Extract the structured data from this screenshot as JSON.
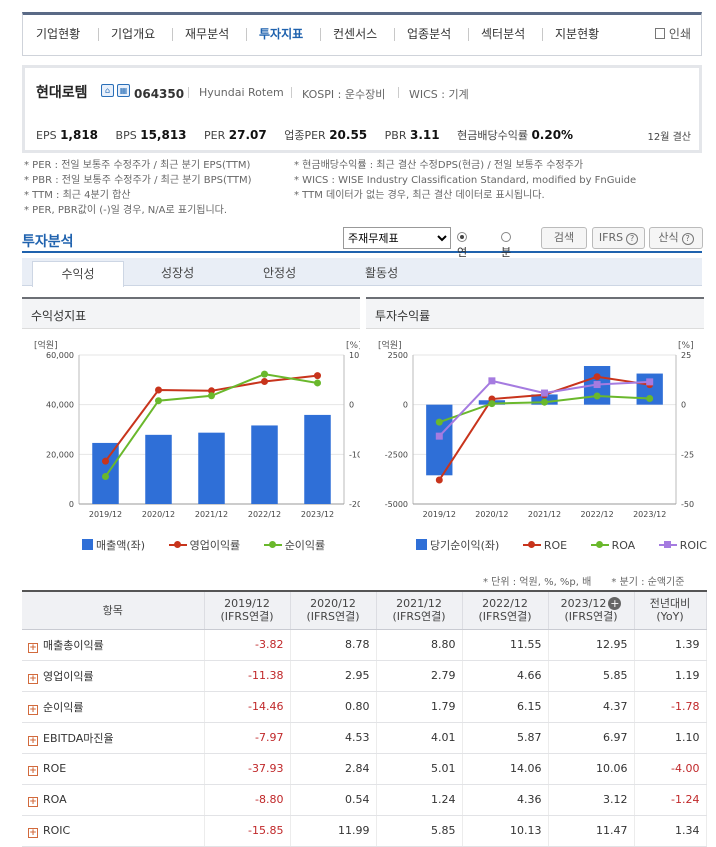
{
  "nav": {
    "tabs": [
      "기업현황",
      "기업개요",
      "재무분석",
      "투자지표",
      "컨센서스",
      "업종분석",
      "섹터분석",
      "지분현황"
    ],
    "active_index": 3,
    "print_label": "인쇄"
  },
  "company": {
    "name": "현대로템",
    "code": "064350",
    "en_name": "Hyundai Rotem",
    "market": "KOSPI : 운수장비",
    "wics": "WICS : 기계",
    "indicators": [
      {
        "label": "EPS",
        "value": "1,818"
      },
      {
        "label": "BPS",
        "value": "15,813"
      },
      {
        "label": "PER",
        "value": "27.07"
      },
      {
        "label": "업종PER",
        "value": "20.55"
      },
      {
        "label": "PBR",
        "value": "3.11"
      },
      {
        "label": "현금배당수익률",
        "value": "0.20%"
      }
    ],
    "settlement": "12월 결산"
  },
  "notes_left": [
    "* PER : 전일 보통주 수정주가 / 최근 분기 EPS(TTM)",
    "* PBR : 전일 보통주 수정주가 / 최근 분기 BPS(TTM)",
    "* TTM : 최근 4분기 합산",
    "* PER, PBR값이 (-)일 경우, N/A로 표기됩니다."
  ],
  "notes_right": [
    "* 현금배당수익률 : 최근 결산 수정DPS(현금) / 전일 보통주 수정주가",
    "* WICS : WISE Industry Classification Standard, modified by FnGuide",
    "* TTM 데이터가 없는 경우, 최근 결산 데이터로 표시됩니다."
  ],
  "section": {
    "title": "투자분석",
    "select_value": "주재무제표",
    "radio_annual": "연간",
    "radio_quarter": "분기",
    "search_button": "검색",
    "ifrs_button": "IFRS",
    "formula_button": "산식"
  },
  "subtabs": [
    "수익성",
    "성장성",
    "안정성",
    "활동성"
  ],
  "left_chart": {
    "title": "수익성지표",
    "unit_left": "[억원]",
    "unit_right": "[%]"
  },
  "right_chart": {
    "title": "투자수익률",
    "unit_left": "[억원]",
    "unit_right": "[%]"
  },
  "unit_notes": [
    "* 단위 : 억원, %, %p, 배",
    "* 분기 : 순액기준"
  ],
  "colors": {
    "bar": "#2f6fd7",
    "line_red": "#c8341c",
    "line_green": "#6ab82c",
    "line_purple": "#a57be0",
    "accent": "#1f62ae"
  },
  "chart_data": [
    {
      "type": "bar",
      "title": "수익성지표",
      "categories": [
        "2019/12",
        "2020/12",
        "2021/12",
        "2022/12",
        "2023/12"
      ],
      "ylabel": "[억원]",
      "y2label": "[%]",
      "ylim": [
        0,
        60000
      ],
      "y2lim": [
        -20,
        10
      ],
      "yticks": [
        "0",
        "20,000",
        "40,000",
        "60,000"
      ],
      "y2ticks": [
        "-20",
        "-10",
        "0",
        "10"
      ],
      "series": [
        {
          "name": "매출액(좌)",
          "kind": "bar",
          "axis": "left",
          "values": [
            24593,
            27853,
            28725,
            31633,
            35874
          ]
        },
        {
          "name": "영업이익률",
          "kind": "line",
          "axis": "right",
          "values": [
            -11.38,
            2.95,
            2.79,
            4.66,
            5.85
          ]
        },
        {
          "name": "순이익률",
          "kind": "line",
          "axis": "right",
          "values": [
            -14.46,
            0.8,
            1.79,
            6.15,
            4.37
          ]
        }
      ]
    },
    {
      "type": "bar",
      "title": "투자수익률",
      "categories": [
        "2019/12",
        "2020/12",
        "2021/12",
        "2022/12",
        "2023/12"
      ],
      "ylabel": "[억원]",
      "y2label": "[%]",
      "ylim": [
        -5000,
        2500
      ],
      "y2lim": [
        -50,
        25
      ],
      "yticks": [
        "-5000",
        "-2500",
        "0",
        "2500"
      ],
      "y2ticks": [
        "-50",
        "-25",
        "0",
        "25"
      ],
      "series": [
        {
          "name": "당기순이익(좌)",
          "kind": "bar",
          "axis": "left",
          "values": [
            -3556,
            223,
            515,
            1946,
            1566
          ]
        },
        {
          "name": "ROE",
          "kind": "line",
          "axis": "right",
          "values": [
            -37.93,
            2.84,
            5.01,
            14.06,
            10.06
          ]
        },
        {
          "name": "ROA",
          "kind": "line",
          "axis": "right",
          "values": [
            -8.8,
            0.54,
            1.24,
            4.36,
            3.12
          ]
        },
        {
          "name": "ROIC",
          "kind": "line",
          "axis": "right",
          "values": [
            -15.85,
            11.99,
            5.85,
            10.13,
            11.47
          ]
        }
      ]
    }
  ],
  "table": {
    "header_item": "항목",
    "columns": [
      {
        "year": "2019/12",
        "basis": "(IFRS연결)"
      },
      {
        "year": "2020/12",
        "basis": "(IFRS연결)"
      },
      {
        "year": "2021/12",
        "basis": "(IFRS연결)"
      },
      {
        "year": "2022/12",
        "basis": "(IFRS연결)"
      },
      {
        "year": "2023/12",
        "basis": "(IFRS연결)"
      }
    ],
    "yoy_label": "전년대비",
    "yoy_sub": "(YoY)",
    "rows": [
      {
        "label": "매출총이익률",
        "values": [
          "-3.82",
          "8.78",
          "8.80",
          "11.55",
          "12.95",
          "1.39"
        ]
      },
      {
        "label": "영업이익률",
        "values": [
          "-11.38",
          "2.95",
          "2.79",
          "4.66",
          "5.85",
          "1.19"
        ]
      },
      {
        "label": "순이익률",
        "values": [
          "-14.46",
          "0.80",
          "1.79",
          "6.15",
          "4.37",
          "-1.78"
        ]
      },
      {
        "label": "EBITDA마진율",
        "values": [
          "-7.97",
          "4.53",
          "4.01",
          "5.87",
          "6.97",
          "1.10"
        ]
      },
      {
        "label": "ROE",
        "values": [
          "-37.93",
          "2.84",
          "5.01",
          "14.06",
          "10.06",
          "-4.00"
        ]
      },
      {
        "label": "ROA",
        "values": [
          "-8.80",
          "0.54",
          "1.24",
          "4.36",
          "3.12",
          "-1.24"
        ]
      },
      {
        "label": "ROIC",
        "values": [
          "-15.85",
          "11.99",
          "5.85",
          "10.13",
          "11.47",
          "1.34"
        ]
      }
    ]
  }
}
